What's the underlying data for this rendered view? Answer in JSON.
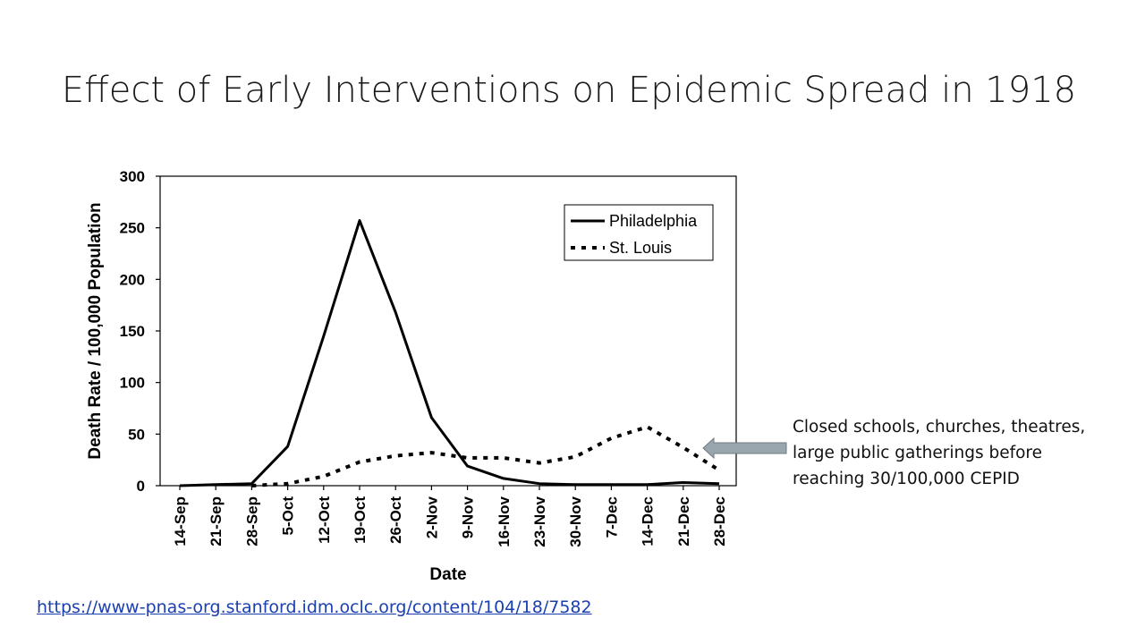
{
  "slide": {
    "title": "Effect of Early Interventions on Epidemic Spread in 1918",
    "annotation_lines": [
      "Closed schools, churches, theatres,",
      "large public gatherings before",
      "reaching 30/100,000  CEPID"
    ],
    "source_link": "https://www-pnas-org.stanford.idm.oclc.org/content/104/18/7582"
  },
  "colors": {
    "line": "#000000",
    "link": "#1a3fb0",
    "arrow": "#9aa6ad"
  },
  "chart_data": {
    "type": "line",
    "title": "",
    "xlabel": "Date",
    "ylabel": "Death Rate / 100,000 Population",
    "categories": [
      "14-Sep",
      "21-Sep",
      "28-Sep",
      "5-Oct",
      "12-Oct",
      "19-Oct",
      "26-Oct",
      "2-Nov",
      "9-Nov",
      "16-Nov",
      "23-Nov",
      "30-Nov",
      "7-Dec",
      "14-Dec",
      "21-Dec",
      "28-Dec"
    ],
    "ylim": [
      0,
      300
    ],
    "yticks": [
      0,
      50,
      100,
      150,
      200,
      250,
      300
    ],
    "legend_position": "top-right",
    "grid": false,
    "series": [
      {
        "name": "Philadelphia",
        "style": "solid",
        "points": [
          {
            "x": "14-Sep",
            "y": 0
          },
          {
            "x": "21-Sep",
            "y": 1
          },
          {
            "x": "28-Sep",
            "y": 2
          },
          {
            "x": "5-Oct",
            "y": 38
          },
          {
            "x": "12-Oct",
            "y": 145
          },
          {
            "x": "19-Oct",
            "y": 257
          },
          {
            "x": "26-Oct",
            "y": 168
          },
          {
            "x": "2-Nov",
            "y": 66
          },
          {
            "x": "9-Nov",
            "y": 19
          },
          {
            "x": "16-Nov",
            "y": 7
          },
          {
            "x": "23-Nov",
            "y": 2
          },
          {
            "x": "30-Nov",
            "y": 1
          },
          {
            "x": "7-Dec",
            "y": 1
          },
          {
            "x": "14-Dec",
            "y": 1
          },
          {
            "x": "21-Dec",
            "y": 3
          },
          {
            "x": "28-Dec",
            "y": 2
          }
        ]
      },
      {
        "name": "St. Louis",
        "style": "dotted",
        "points": [
          {
            "x": "28-Sep",
            "y": 0
          },
          {
            "x": "5-Oct",
            "y": 2
          },
          {
            "x": "12-Oct",
            "y": 9
          },
          {
            "x": "19-Oct",
            "y": 23
          },
          {
            "x": "26-Oct",
            "y": 29
          },
          {
            "x": "2-Nov",
            "y": 32
          },
          {
            "x": "9-Nov",
            "y": 27
          },
          {
            "x": "16-Nov",
            "y": 27
          },
          {
            "x": "23-Nov",
            "y": 22
          },
          {
            "x": "30-Nov",
            "y": 28
          },
          {
            "x": "7-Dec",
            "y": 46
          },
          {
            "x": "14-Dec",
            "y": 57
          },
          {
            "x": "21-Dec",
            "y": 37
          },
          {
            "x": "28-Dec",
            "y": 15
          }
        ]
      }
    ]
  }
}
